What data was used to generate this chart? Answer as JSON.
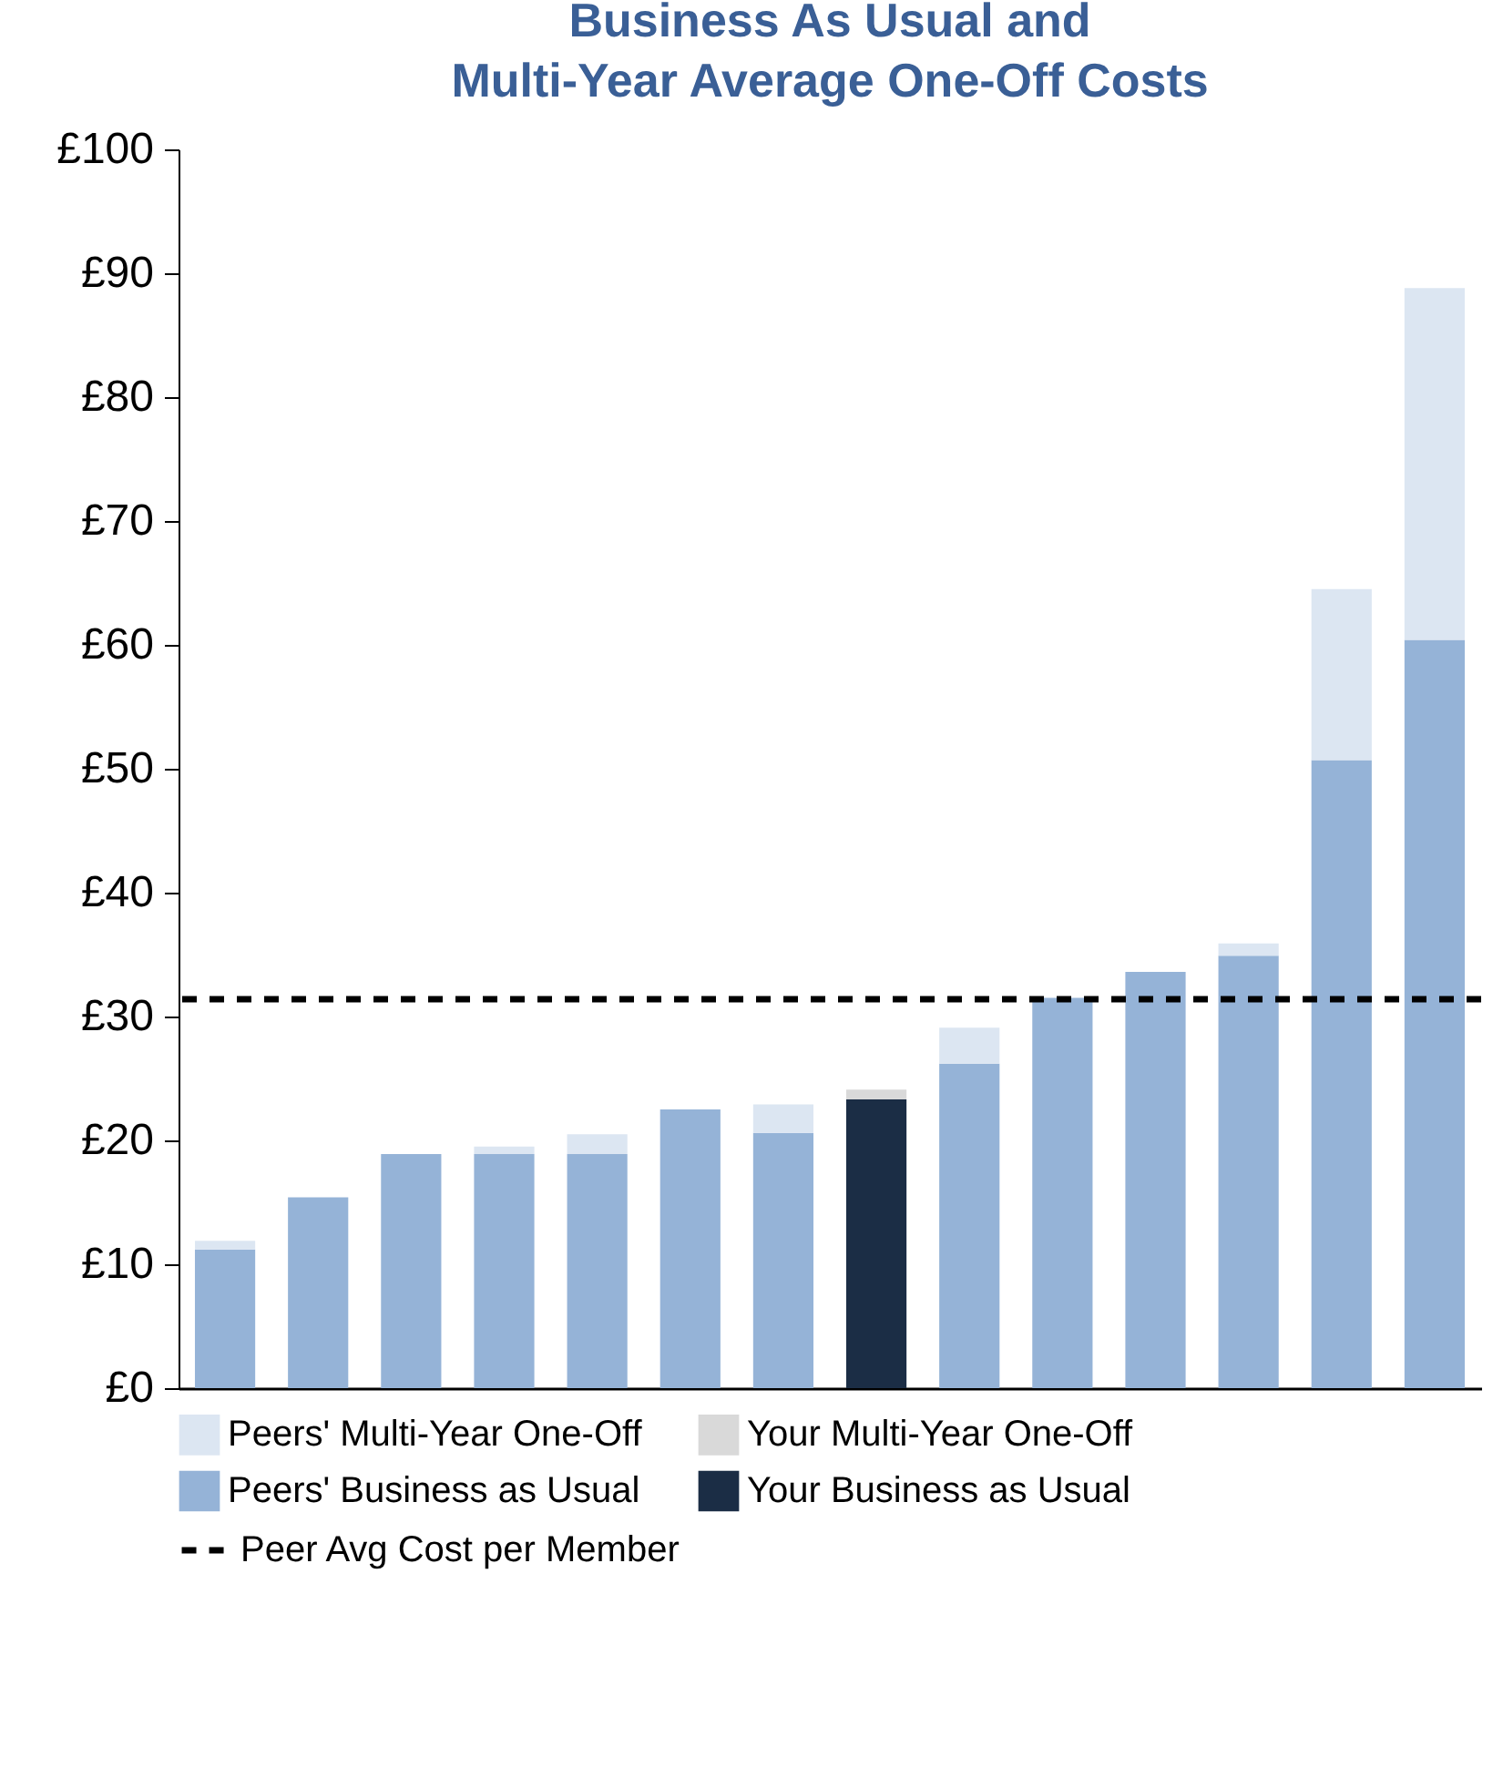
{
  "chart_data": {
    "type": "bar",
    "title": "Business As Usual and Multi-Year Average One-Off Costs",
    "stacked": true,
    "categories": [
      null,
      null,
      null,
      null,
      null,
      null,
      null,
      null,
      null,
      null,
      null,
      null,
      null,
      null
    ],
    "series": [
      {
        "name": "Peers' Business as Usual",
        "color": "#95b3d7",
        "values": [
          11.2,
          15.4,
          18.9,
          18.9,
          18.9,
          22.5,
          20.6,
          null,
          26.2,
          31.5,
          33.6,
          34.9,
          50.7,
          60.4
        ]
      },
      {
        "name": "Your Business as Usual",
        "color": "#1b2d45",
        "values": [
          null,
          null,
          null,
          null,
          null,
          null,
          null,
          23.3,
          null,
          null,
          null,
          null,
          null,
          null
        ]
      },
      {
        "name": "Peers' Multi-Year One-Off",
        "color": "#dce6f2",
        "values": [
          0.7,
          null,
          null,
          0.6,
          1.6,
          null,
          2.3,
          null,
          2.9,
          null,
          null,
          1.0,
          13.8,
          28.4
        ]
      },
      {
        "name": "Your Multi-Year One-Off",
        "color": "#d9d9d9",
        "values": [
          null,
          null,
          null,
          null,
          null,
          null,
          null,
          0.8,
          null,
          null,
          null,
          null,
          null,
          null
        ]
      }
    ],
    "ylim": [
      0,
      100
    ],
    "yticks": [
      {
        "value": 0,
        "label": "£0"
      },
      {
        "value": 10,
        "label": "£10"
      },
      {
        "value": 20,
        "label": "£20"
      },
      {
        "value": 30,
        "label": "£30"
      },
      {
        "value": 40,
        "label": "£40"
      },
      {
        "value": 50,
        "label": "£50"
      },
      {
        "value": 60,
        "label": "£60"
      },
      {
        "value": 70,
        "label": "£70"
      },
      {
        "value": 80,
        "label": "£80"
      },
      {
        "value": 90,
        "label": "£90"
      },
      {
        "value": 100,
        "label": "£100"
      }
    ],
    "ref_lines": [
      {
        "axis": "y",
        "value": 31.4,
        "label": "Peer Avg Cost per Member",
        "color": "#000000",
        "line_style": "dashed"
      }
    ],
    "grid": false,
    "legend": "bottom"
  }
}
